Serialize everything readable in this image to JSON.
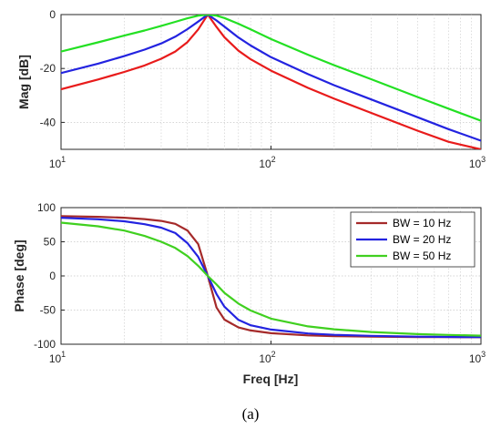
{
  "caption": "(a)",
  "chart_data": [
    {
      "type": "line",
      "xscale": "log",
      "xlim": [
        10,
        1000
      ],
      "ylim": [
        -50,
        0
      ],
      "ylabel": "Mag [dB]",
      "xlabel": "",
      "yticks": [
        0,
        -20,
        -40
      ],
      "ytick_labels": [
        "0",
        "-20",
        "-40"
      ],
      "xticks": [
        10,
        100,
        1000
      ],
      "grid": true,
      "legend": false,
      "x": [
        10,
        15,
        20,
        25,
        30,
        35,
        40,
        45,
        50,
        55,
        60,
        70,
        80,
        100,
        150,
        200,
        300,
        500,
        700,
        1000
      ],
      "series": [
        {
          "color": "#e81b1b",
          "values": [
            -27.7,
            -24.1,
            -21.3,
            -18.9,
            -16.4,
            -13.7,
            -10.2,
            -5.5,
            0,
            -4.6,
            -8.4,
            -13.4,
            -16.6,
            -20.8,
            -27.2,
            -31.2,
            -36.5,
            -43.1,
            -47.2,
            -51.6
          ]
        },
        {
          "color": "#2323e0",
          "values": [
            -21.7,
            -18.2,
            -15.4,
            -13.0,
            -10.7,
            -8.2,
            -5.4,
            -2.6,
            0,
            -2.2,
            -4.5,
            -8.5,
            -11.5,
            -15.8,
            -22.1,
            -26.2,
            -31.5,
            -38.1,
            -42.5,
            -46.8
          ]
        },
        {
          "color": "#23e023",
          "values": [
            -13.7,
            -10.3,
            -7.8,
            -5.9,
            -4.2,
            -2.7,
            -1.4,
            -0.4,
            0,
            -0.4,
            -1.3,
            -3.4,
            -5.5,
            -9.1,
            -14.9,
            -18.8,
            -24.0,
            -30.6,
            -34.9,
            -39.4
          ]
        }
      ]
    },
    {
      "type": "line",
      "xscale": "log",
      "xlim": [
        10,
        1000
      ],
      "ylim": [
        -100,
        100
      ],
      "xlabel": "Freq [Hz]",
      "ylabel": "Phase [deg]",
      "yticks": [
        100,
        50,
        0,
        -50,
        -100
      ],
      "ytick_labels": [
        "100",
        "50",
        "0",
        "-50",
        "-100"
      ],
      "xticks": [
        10,
        100,
        1000
      ],
      "grid": true,
      "legend": "top-right",
      "x": [
        10,
        15,
        20,
        25,
        30,
        35,
        40,
        45,
        50,
        55,
        60,
        70,
        80,
        100,
        150,
        200,
        300,
        500,
        700,
        1000
      ],
      "series": [
        {
          "name": "BW = 10 Hz",
          "color": "#a52a2a",
          "values": [
            87.6,
            86.6,
            85.2,
            83.2,
            80.5,
            76.2,
            66.6,
            46.5,
            0,
            -46.3,
            -64.0,
            -75.4,
            -79.8,
            -83.9,
            -87.1,
            -88.2,
            -88.9,
            -89.5,
            -89.6,
            -89.7
          ]
        },
        {
          "name": "BW = 20 Hz",
          "color": "#2323e0",
          "values": [
            85.2,
            83.0,
            80.0,
            75.8,
            70.7,
            62.8,
            48.0,
            27.9,
            0,
            -26.5,
            -45.0,
            -64.4,
            -72.3,
            -78.6,
            -84.3,
            -86.3,
            -87.7,
            -88.9,
            -89.3,
            -89.6
          ]
        },
        {
          "name": "BW = 50 Hz",
          "color": "#40d020",
          "values": [
            78.0,
            72.7,
            66.4,
            58.5,
            50.0,
            41.0,
            29.1,
            14.8,
            0,
            -12.6,
            -24.8,
            -40.5,
            -50.7,
            -62.5,
            -73.9,
            -78.2,
            -82.2,
            -85.2,
            -86.4,
            -87.5
          ]
        }
      ]
    }
  ]
}
